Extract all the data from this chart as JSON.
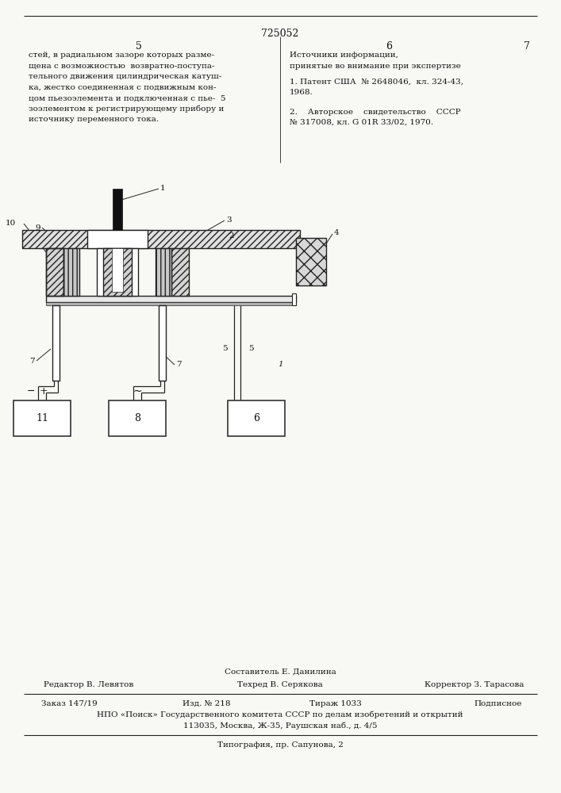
{
  "page_number": "725052",
  "col_left_header": "5",
  "col_right_header": "6",
  "col_right_header2": "7",
  "left_text_lines": [
    "стей, в радиальном зазоре которых разме-",
    "щена с возможностью  возвратно-поступа-",
    "тельного движения цилиндрическая катуш-",
    "ка, жестко соединенная с подвижным кон-",
    "цом пьезоэлемента и подключенная с пье-  5",
    "зоэлементом к регистрирующему прибору и",
    "источнику переменного тока."
  ],
  "right_header_text_lines": [
    "Источники информации,",
    "принятые во внимание при экспертизе"
  ],
  "ref1_lines": [
    "1. Патент США  № 2648046,  кл. 324-43,",
    "1968."
  ],
  "ref2_lines": [
    "2.    Авторское    свидетельство    СССР",
    "№ 317008, кл. G 01R 33/02, 1970."
  ],
  "footer_compiler": "Составитель Е. Данилина",
  "footer_editor": "Редактор В. Левятов",
  "footer_techred": "Техред В. Серякова",
  "footer_corrector": "Корректор З. Тарасова",
  "footer_order": "Заказ 147/19",
  "footer_izd": "Изд. № 218",
  "footer_tiraj": "Тираж 1033",
  "footer_podpisnoe": "Подписное",
  "footer_npo_line1": "НПО «Поиск» Государственного комитета СССР по делам изобретений и открытий",
  "footer_npo_line2": "113035, Москва, Ж-35, Раушская наб., д. 4/5",
  "footer_typography": "Типография, пр. Сапунова, 2",
  "bg_color": "#f8f8f5",
  "text_color": "#111111"
}
